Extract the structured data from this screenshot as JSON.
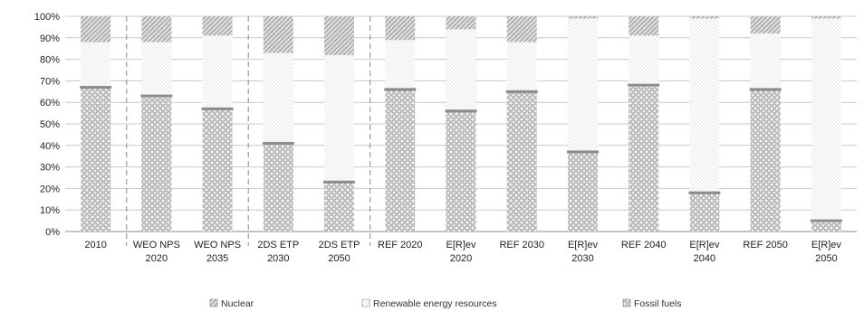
{
  "chart_data": {
    "type": "bar",
    "stacked": true,
    "orientation": "vertical",
    "ylim": [
      0,
      100
    ],
    "y_ticks": [
      "0%",
      "10%",
      "20%",
      "30%",
      "40%",
      "50%",
      "60%",
      "70%",
      "80%",
      "90%",
      "100%"
    ],
    "grid": true,
    "legend_position": "bottom",
    "categories": [
      [
        "2010"
      ],
      [
        "WEO NPS",
        "2020"
      ],
      [
        "WEO NPS",
        "2035"
      ],
      [
        "2DS ETP",
        "2030"
      ],
      [
        "2DS ETP",
        "2050"
      ],
      [
        "REF 2020"
      ],
      [
        "E[R]ev",
        "2020"
      ],
      [
        "REF 2030"
      ],
      [
        "E[R]ev",
        "2030"
      ],
      [
        "REF 2040"
      ],
      [
        "E[R]ev",
        "2040"
      ],
      [
        "REF 2050"
      ],
      [
        "E[R]ev",
        "2050"
      ]
    ],
    "group_separators_after": [
      0,
      2,
      4
    ],
    "series": [
      {
        "name": "Fossil fuels",
        "values": [
          67,
          63,
          57,
          41,
          23,
          66,
          56,
          65,
          37,
          68,
          18,
          66,
          5
        ]
      },
      {
        "name": "Renewable energy resources",
        "values": [
          21,
          25,
          34,
          42,
          59,
          23,
          38,
          23,
          62,
          23,
          81,
          26,
          94
        ]
      },
      {
        "name": "Nuclear",
        "values": [
          12,
          12,
          9,
          17,
          18,
          11,
          6,
          12,
          1,
          9,
          1,
          8,
          1
        ]
      }
    ],
    "legend": [
      "Nuclear",
      "Renewable energy resources",
      "Fossil fuels"
    ]
  }
}
